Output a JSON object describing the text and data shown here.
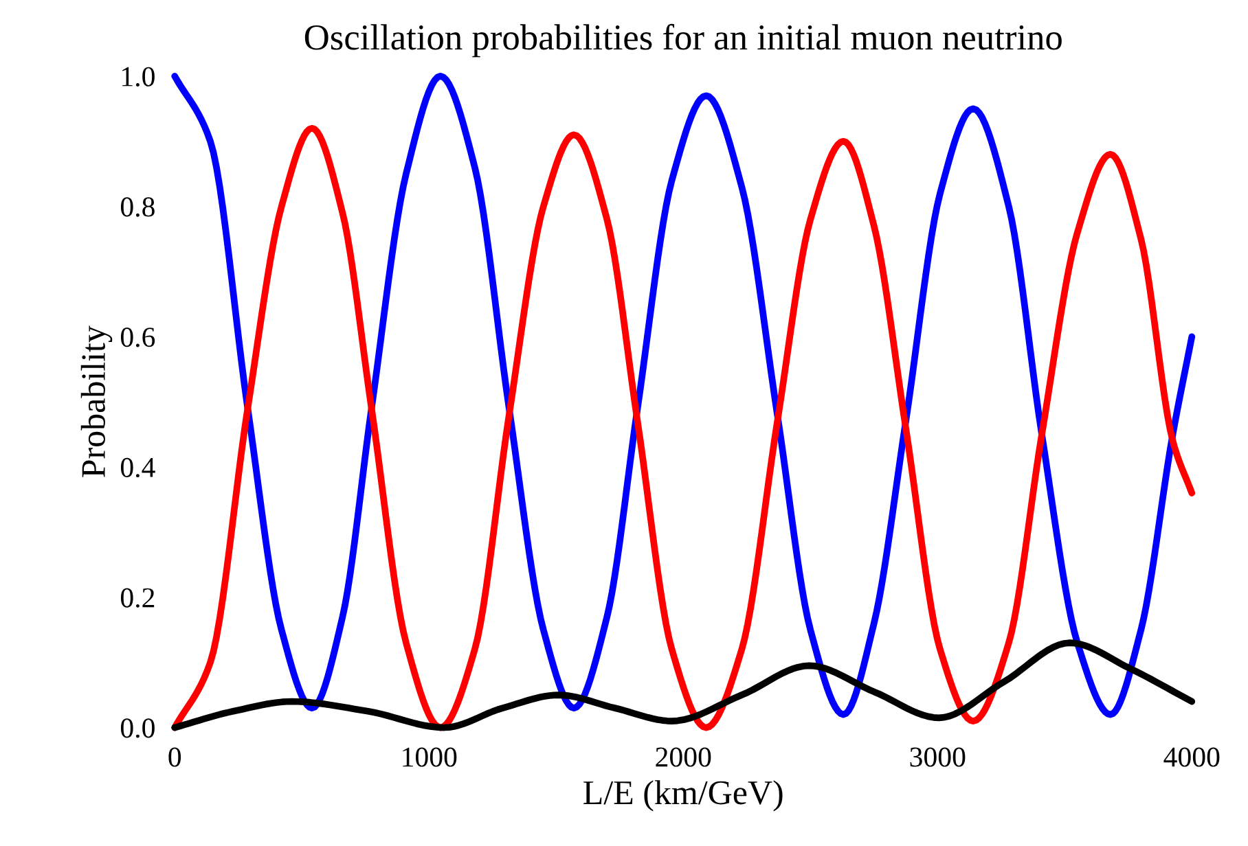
{
  "chart_data": {
    "type": "line",
    "title": "Oscillation probabilities for an initial muon neutrino",
    "xlabel": "L/E (km/GeV)",
    "ylabel": "Probability",
    "xlim": [
      0,
      4000
    ],
    "xticks": [
      0,
      1000,
      2000,
      3000,
      4000
    ],
    "ylim": [
      0,
      1.0
    ],
    "yticks": [
      {
        "value": 0,
        "label": "0.0"
      },
      {
        "value": 0.2,
        "label": "0.2"
      },
      {
        "value": 0.4,
        "label": "0.4"
      },
      {
        "value": 0.6,
        "label": "0.6"
      },
      {
        "value": 0.8,
        "label": "0.8"
      },
      {
        "value": 1.0,
        "label": "1.0"
      }
    ],
    "grid": false,
    "line_style": "solid",
    "marker": "none",
    "series": [
      {
        "color": "#0000ff",
        "x": [
          0,
          140,
          287,
          420,
          540,
          660,
          774,
          910,
          1045,
          1180,
          1315,
          1450,
          1570,
          1700,
          1820,
          1955,
          2090,
          2230,
          2370,
          2500,
          2630,
          2750,
          2875,
          3010,
          3140,
          3280,
          3410,
          3550,
          3680,
          3800,
          3925,
          4000
        ],
        "values": [
          1.0,
          0.9,
          0.49,
          0.15,
          0.03,
          0.17,
          0.49,
          0.85,
          1.0,
          0.86,
          0.49,
          0.15,
          0.03,
          0.17,
          0.49,
          0.84,
          0.97,
          0.83,
          0.48,
          0.15,
          0.02,
          0.16,
          0.47,
          0.82,
          0.95,
          0.8,
          0.45,
          0.13,
          0.02,
          0.15,
          0.45,
          0.6
        ]
      },
      {
        "color": "#ff0000",
        "x": [
          0,
          140,
          287,
          420,
          540,
          660,
          774,
          910,
          1045,
          1180,
          1315,
          1450,
          1570,
          1700,
          1820,
          1955,
          2090,
          2230,
          2370,
          2500,
          2630,
          2750,
          2875,
          3010,
          3140,
          3280,
          3410,
          3550,
          3680,
          3800,
          3925,
          4000
        ],
        "values": [
          0.0,
          0.1,
          0.49,
          0.8,
          0.92,
          0.79,
          0.49,
          0.13,
          0.0,
          0.12,
          0.48,
          0.8,
          0.91,
          0.78,
          0.47,
          0.12,
          0.0,
          0.12,
          0.47,
          0.78,
          0.9,
          0.77,
          0.46,
          0.12,
          0.01,
          0.13,
          0.45,
          0.76,
          0.88,
          0.75,
          0.44,
          0.36
        ]
      },
      {
        "color": "#000000",
        "x": [
          0,
          230,
          460,
          760,
          1060,
          1290,
          1510,
          1730,
          1955,
          2230,
          2495,
          2750,
          3005,
          3260,
          3520,
          3760,
          4000
        ],
        "values": [
          0.0,
          0.025,
          0.04,
          0.025,
          0.0,
          0.03,
          0.05,
          0.03,
          0.01,
          0.05,
          0.095,
          0.055,
          0.015,
          0.07,
          0.13,
          0.09,
          0.04
        ]
      }
    ]
  }
}
